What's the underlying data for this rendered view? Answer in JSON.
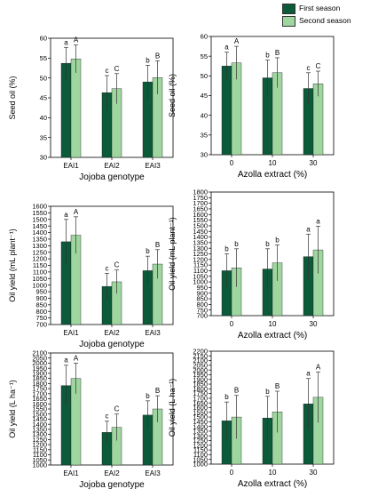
{
  "legend": [
    {
      "label": "First season",
      "color": "#0b5a3a"
    },
    {
      "label": "Second season",
      "color": "#9fd6a0"
    }
  ],
  "chart_data": [
    {
      "type": "bar",
      "ylabel": "Seed oil (%)",
      "xlabel": "Jojoba genotype",
      "categories": [
        "EAI1",
        "EAI2",
        "EAI3"
      ],
      "ylim": [
        30,
        60
      ],
      "ytick_step": 5,
      "series": [
        {
          "name": "First season",
          "values": [
            53.7,
            46.3,
            49.0
          ],
          "errors": [
            4.0,
            4.3,
            4.2
          ],
          "labels": [
            "a",
            "c",
            "b"
          ]
        },
        {
          "name": "Second season",
          "values": [
            54.8,
            47.3,
            50.1
          ],
          "errors": [
            3.5,
            3.8,
            4.2
          ],
          "labels": [
            "A",
            "C",
            "B"
          ]
        }
      ]
    },
    {
      "type": "bar",
      "ylabel": "Seed oil (%)",
      "xlabel": "Azolla extract (%)",
      "categories": [
        "0",
        "10",
        "30"
      ],
      "ylim": [
        30,
        60
      ],
      "ytick_step": 5,
      "series": [
        {
          "name": "First season",
          "values": [
            52.5,
            49.5,
            46.8
          ],
          "errors": [
            3.5,
            4.5,
            4.0
          ],
          "labels": [
            "a",
            "b",
            "c"
          ]
        },
        {
          "name": "Second season",
          "values": [
            53.3,
            50.8,
            48.0
          ],
          "errors": [
            4.2,
            3.8,
            3.2
          ],
          "labels": [
            "A",
            "B",
            "C"
          ]
        }
      ]
    },
    {
      "type": "bar",
      "ylabel": "Oil yield (mL plant⁻¹)",
      "xlabel": "Jojoba genotype",
      "categories": [
        "EAI1",
        "EAI2",
        "EAI3"
      ],
      "ylim": [
        700,
        1600
      ],
      "ytick_step": 50,
      "series": [
        {
          "name": "First season",
          "values": [
            1330,
            990,
            1110
          ],
          "errors": [
            170,
            100,
            110
          ],
          "labels": [
            "a",
            "c",
            "b"
          ]
        },
        {
          "name": "Second season",
          "values": [
            1380,
            1025,
            1160
          ],
          "errors": [
            140,
            90,
            110
          ],
          "labels": [
            "A",
            "C",
            "B"
          ]
        }
      ]
    },
    {
      "type": "bar",
      "ylabel": "Oil yield (mL plant⁻¹)",
      "xlabel": "Azolla extract (%)",
      "categories": [
        "0",
        "10",
        "30"
      ],
      "ylim": [
        700,
        1800
      ],
      "ytick_step": 50,
      "series": [
        {
          "name": "First season",
          "values": [
            1100,
            1115,
            1225
          ],
          "errors": [
            150,
            180,
            200
          ],
          "labels": [
            "b",
            "b",
            "a"
          ]
        },
        {
          "name": "Second season",
          "values": [
            1125,
            1170,
            1285
          ],
          "errors": [
            170,
            160,
            210
          ],
          "labels": [
            "b",
            "b",
            "a"
          ]
        }
      ]
    },
    {
      "type": "bar",
      "ylabel": "Oil yield (L ha⁻¹)",
      "xlabel": "Jojoba genotype",
      "categories": [
        "EAI1",
        "EAI2",
        "EAI3"
      ],
      "ylim": [
        1000,
        2100
      ],
      "ytick_step": 50,
      "series": [
        {
          "name": "First season",
          "values": [
            1780,
            1320,
            1490
          ],
          "errors": [
            200,
            110,
            140
          ],
          "labels": [
            "a",
            "c",
            "b"
          ]
        },
        {
          "name": "Second season",
          "values": [
            1850,
            1370,
            1550
          ],
          "errors": [
            150,
            130,
            130
          ],
          "labels": [
            "A",
            "C",
            "B"
          ]
        }
      ]
    },
    {
      "type": "bar",
      "ylabel": "Oil yield (L ha⁻¹)",
      "xlabel": "Azolla extract (%)",
      "categories": [
        "0",
        "10",
        "30"
      ],
      "ylim": [
        1000,
        2200
      ],
      "ytick_step": 50,
      "series": [
        {
          "name": "First season",
          "values": [
            1460,
            1490,
            1640
          ],
          "errors": [
            200,
            230,
            270
          ],
          "labels": [
            "b",
            "b",
            "a"
          ]
        },
        {
          "name": "Second season",
          "values": [
            1500,
            1555,
            1710
          ],
          "errors": [
            230,
            220,
            270
          ],
          "labels": [
            "B",
            "B",
            "A"
          ]
        }
      ]
    }
  ]
}
